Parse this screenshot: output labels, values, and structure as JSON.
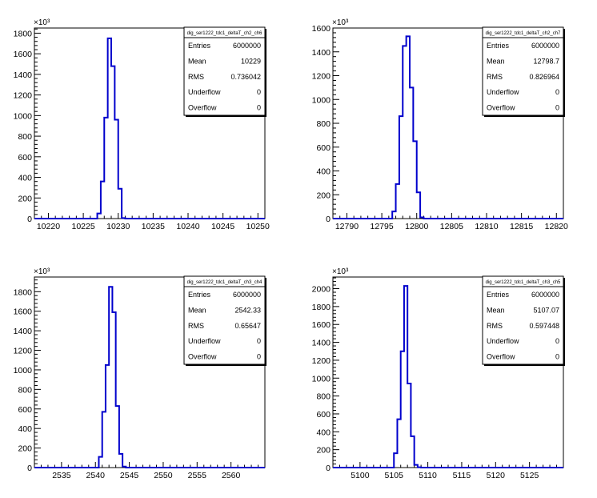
{
  "chart_data": [
    {
      "type": "bar",
      "title": "dig_ser1222_tdc1_deltaT_ch2_ch6",
      "exponent_label": "×10³",
      "xlim": [
        10218,
        10251
      ],
      "ylim": [
        0,
        1850
      ],
      "x_ticks": [
        10220,
        10225,
        10230,
        10235,
        10240,
        10245,
        10250
      ],
      "y_ticks": [
        0,
        200,
        400,
        600,
        800,
        1000,
        1200,
        1400,
        1600,
        1800
      ],
      "bins": {
        "edges": [
          10227,
          10227.5,
          10228,
          10228.5,
          10229,
          10229.5,
          10230,
          10230.5,
          10231
        ],
        "values": [
          50,
          360,
          980,
          1750,
          1480,
          960,
          290,
          5
        ]
      },
      "stats": [
        {
          "label": "Entries",
          "value": "6000000"
        },
        {
          "label": "Mean",
          "value": "10229"
        },
        {
          "label": "RMS",
          "value": "0.736042"
        },
        {
          "label": "Underflow",
          "value": "0"
        },
        {
          "label": "Overflow",
          "value": "0"
        }
      ]
    },
    {
      "type": "bar",
      "title": "dig_ser1222_tdc1_deltaT_ch2_ch7",
      "exponent_label": "×10³",
      "xlim": [
        12788,
        12821
      ],
      "ylim": [
        0,
        1600
      ],
      "x_ticks": [
        12790,
        12795,
        12800,
        12805,
        12810,
        12815,
        12820
      ],
      "y_ticks": [
        0,
        200,
        400,
        600,
        800,
        1000,
        1200,
        1400,
        1600
      ],
      "bins": {
        "edges": [
          12796.5,
          12797,
          12797.5,
          12798,
          12798.5,
          12799,
          12799.5,
          12800,
          12800.5,
          12801
        ],
        "values": [
          60,
          290,
          860,
          1450,
          1530,
          1100,
          650,
          220,
          10
        ]
      },
      "stats": [
        {
          "label": "Entries",
          "value": "6000000"
        },
        {
          "label": "Mean",
          "value": "12798.7"
        },
        {
          "label": "RMS",
          "value": "0.826964"
        },
        {
          "label": "Underflow",
          "value": "0"
        },
        {
          "label": "Overflow",
          "value": "0"
        }
      ]
    },
    {
      "type": "bar",
      "title": "dig_ser1222_tdc1_deltaT_ch3_ch4",
      "exponent_label": "×10³",
      "xlim": [
        2531,
        2565
      ],
      "ylim": [
        0,
        1950
      ],
      "x_ticks": [
        2535,
        2540,
        2545,
        2550,
        2555,
        2560
      ],
      "y_ticks": [
        0,
        200,
        400,
        600,
        800,
        1000,
        1200,
        1400,
        1600,
        1800
      ],
      "bins": {
        "edges": [
          2540.5,
          2541,
          2541.5,
          2542,
          2542.5,
          2543,
          2543.5,
          2544,
          2544.5
        ],
        "values": [
          110,
          570,
          1050,
          1850,
          1590,
          630,
          140,
          10
        ]
      },
      "stats": [
        {
          "label": "Entries",
          "value": "6000000"
        },
        {
          "label": "Mean",
          "value": "2542.33"
        },
        {
          "label": "RMS",
          "value": "0.65647"
        },
        {
          "label": "Underflow",
          "value": "0"
        },
        {
          "label": "Overflow",
          "value": "0"
        }
      ]
    },
    {
      "type": "bar",
      "title": "dig_ser1222_tdc1_deltaT_ch3_ch5",
      "exponent_label": "×10³",
      "xlim": [
        5096,
        5130
      ],
      "ylim": [
        0,
        2130
      ],
      "x_ticks": [
        5100,
        5105,
        5110,
        5115,
        5120,
        5125
      ],
      "y_ticks": [
        0,
        200,
        400,
        600,
        800,
        1000,
        1200,
        1400,
        1600,
        1800,
        2000
      ],
      "bins": {
        "edges": [
          5105,
          5105.5,
          5106,
          5106.5,
          5107,
          5107.5,
          5108,
          5108.5,
          5109
        ],
        "values": [
          160,
          540,
          1300,
          2030,
          940,
          350,
          30,
          3
        ]
      },
      "stats": [
        {
          "label": "Entries",
          "value": "6000000"
        },
        {
          "label": "Mean",
          "value": "5107.07"
        },
        {
          "label": "RMS",
          "value": "0.597448"
        },
        {
          "label": "Underflow",
          "value": "0"
        },
        {
          "label": "Overflow",
          "value": "0"
        }
      ]
    }
  ],
  "colors": {
    "histogram": "#0000cc",
    "axis": "#000000",
    "background": "#ffffff"
  }
}
